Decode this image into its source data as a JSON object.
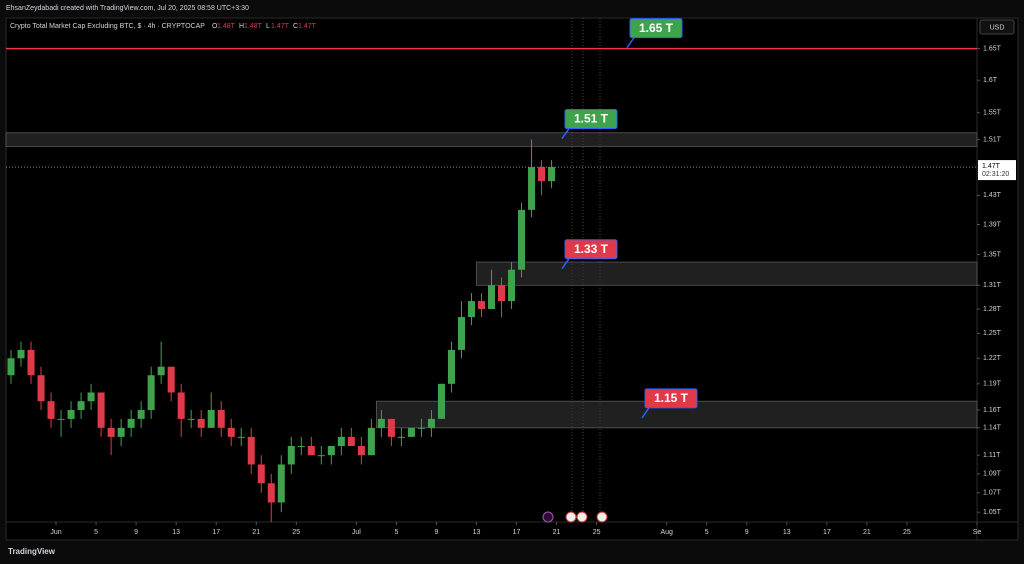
{
  "header_note": "EhsanZeydabadi created with TradingView.com, Jul 20, 2025 08:58 UTC+3:30",
  "currency": "USD",
  "brand": "TradingView",
  "chart_data": {
    "type": "candlestick",
    "title": "Crypto Total Market Cap Excluding BTC, $ · 4h · CRYPTOCAP",
    "ohlc_keys": [
      "O",
      "H",
      "L",
      "C"
    ],
    "ohlc_labels": [
      "1.48T",
      "1.48T",
      "1.47T",
      "1.47T"
    ],
    "log_scale": true,
    "grid": false,
    "up_color": "#3fa34d",
    "down_color": "#e0394a",
    "x": [
      "2025-05-27",
      "2025-05-28",
      "2025-05-29",
      "2025-05-30",
      "2025-05-31",
      "2025-06-01",
      "2025-06-02",
      "2025-06-03",
      "2025-06-04",
      "2025-06-05",
      "2025-06-06",
      "2025-06-07",
      "2025-06-08",
      "2025-06-09",
      "2025-06-10",
      "2025-06-11",
      "2025-06-12",
      "2025-06-13",
      "2025-06-14",
      "2025-06-15",
      "2025-06-16",
      "2025-06-17",
      "2025-06-18",
      "2025-06-19",
      "2025-06-20",
      "2025-06-21",
      "2025-06-22",
      "2025-06-23",
      "2025-06-24",
      "2025-06-25",
      "2025-06-26",
      "2025-06-27",
      "2025-06-28",
      "2025-06-29",
      "2025-06-30",
      "2025-07-01",
      "2025-07-02",
      "2025-07-03",
      "2025-07-04",
      "2025-07-05",
      "2025-07-06",
      "2025-07-07",
      "2025-07-08",
      "2025-07-09",
      "2025-07-10",
      "2025-07-11",
      "2025-07-12",
      "2025-07-13",
      "2025-07-14",
      "2025-07-15",
      "2025-07-16",
      "2025-07-17",
      "2025-07-18",
      "2025-07-19",
      "2025-07-20"
    ],
    "open": [
      1.2,
      1.22,
      1.23,
      1.2,
      1.17,
      1.15,
      1.15,
      1.16,
      1.17,
      1.18,
      1.14,
      1.13,
      1.14,
      1.15,
      1.16,
      1.2,
      1.21,
      1.18,
      1.15,
      1.15,
      1.14,
      1.16,
      1.14,
      1.13,
      1.13,
      1.1,
      1.08,
      1.06,
      1.1,
      1.12,
      1.12,
      1.11,
      1.11,
      1.12,
      1.13,
      1.12,
      1.11,
      1.14,
      1.15,
      1.13,
      1.13,
      1.14,
      1.14,
      1.15,
      1.19,
      1.23,
      1.27,
      1.29,
      1.28,
      1.31,
      1.29,
      1.33,
      1.41,
      1.47,
      1.45
    ],
    "high": [
      1.23,
      1.24,
      1.24,
      1.21,
      1.18,
      1.16,
      1.17,
      1.18,
      1.19,
      1.18,
      1.15,
      1.15,
      1.16,
      1.17,
      1.21,
      1.24,
      1.21,
      1.19,
      1.16,
      1.16,
      1.18,
      1.17,
      1.15,
      1.14,
      1.14,
      1.11,
      1.09,
      1.11,
      1.13,
      1.13,
      1.13,
      1.12,
      1.12,
      1.14,
      1.14,
      1.13,
      1.15,
      1.16,
      1.15,
      1.14,
      1.14,
      1.15,
      1.16,
      1.19,
      1.24,
      1.29,
      1.3,
      1.3,
      1.33,
      1.32,
      1.34,
      1.42,
      1.51,
      1.48,
      1.48
    ],
    "low": [
      1.19,
      1.21,
      1.19,
      1.16,
      1.14,
      1.13,
      1.14,
      1.15,
      1.16,
      1.13,
      1.11,
      1.12,
      1.13,
      1.14,
      1.15,
      1.19,
      1.17,
      1.13,
      1.14,
      1.13,
      1.14,
      1.13,
      1.12,
      1.12,
      1.09,
      1.07,
      1.04,
      1.05,
      1.09,
      1.11,
      1.11,
      1.1,
      1.1,
      1.11,
      1.12,
      1.1,
      1.11,
      1.13,
      1.12,
      1.12,
      1.13,
      1.13,
      1.13,
      1.15,
      1.18,
      1.22,
      1.26,
      1.27,
      1.28,
      1.27,
      1.28,
      1.32,
      1.4,
      1.43,
      1.44
    ],
    "close": [
      1.22,
      1.23,
      1.2,
      1.17,
      1.15,
      1.15,
      1.16,
      1.17,
      1.18,
      1.14,
      1.13,
      1.14,
      1.15,
      1.16,
      1.2,
      1.21,
      1.18,
      1.15,
      1.15,
      1.14,
      1.16,
      1.14,
      1.13,
      1.13,
      1.1,
      1.08,
      1.06,
      1.1,
      1.12,
      1.12,
      1.11,
      1.11,
      1.12,
      1.13,
      1.12,
      1.11,
      1.14,
      1.15,
      1.13,
      1.13,
      1.14,
      1.14,
      1.15,
      1.19,
      1.23,
      1.27,
      1.29,
      1.28,
      1.31,
      1.29,
      1.33,
      1.41,
      1.47,
      1.45,
      1.47
    ],
    "xlim": [
      "2025-05-27",
      "2025-09-01"
    ],
    "xticks": [
      {
        "value": "2025-06-01",
        "label": "Jun"
      },
      {
        "value": "2025-06-05",
        "label": "5"
      },
      {
        "value": "2025-06-09",
        "label": "9"
      },
      {
        "value": "2025-06-13",
        "label": "13"
      },
      {
        "value": "2025-06-17",
        "label": "17"
      },
      {
        "value": "2025-06-21",
        "label": "21"
      },
      {
        "value": "2025-06-25",
        "label": "25"
      },
      {
        "value": "2025-07-01",
        "label": "Jul"
      },
      {
        "value": "2025-07-05",
        "label": "5"
      },
      {
        "value": "2025-07-09",
        "label": "9"
      },
      {
        "value": "2025-07-13",
        "label": "13"
      },
      {
        "value": "2025-07-17",
        "label": "17"
      },
      {
        "value": "2025-07-21",
        "label": "21"
      },
      {
        "value": "2025-07-25",
        "label": "25"
      },
      {
        "value": "2025-08-01",
        "label": "Aug"
      },
      {
        "value": "2025-08-05",
        "label": "5"
      },
      {
        "value": "2025-08-09",
        "label": "9"
      },
      {
        "value": "2025-08-13",
        "label": "13"
      },
      {
        "value": "2025-08-17",
        "label": "17"
      },
      {
        "value": "2025-08-21",
        "label": "21"
      },
      {
        "value": "2025-08-25",
        "label": "25"
      },
      {
        "value": "2025-09-01",
        "label": "Se"
      }
    ],
    "ylim": [
      1.04,
      1.7
    ],
    "yticks": [
      {
        "value": 1.65,
        "label": "1.65T"
      },
      {
        "value": 1.6,
        "label": "1.6T"
      },
      {
        "value": 1.55,
        "label": "1.55T"
      },
      {
        "value": 1.51,
        "label": "1.51T"
      },
      {
        "value": 1.43,
        "label": "1.43T"
      },
      {
        "value": 1.39,
        "label": "1.39T"
      },
      {
        "value": 1.35,
        "label": "1.35T"
      },
      {
        "value": 1.31,
        "label": "1.31T"
      },
      {
        "value": 1.28,
        "label": "1.28T"
      },
      {
        "value": 1.25,
        "label": "1.25T"
      },
      {
        "value": 1.22,
        "label": "1.22T"
      },
      {
        "value": 1.19,
        "label": "1.19T"
      },
      {
        "value": 1.16,
        "label": "1.16T"
      },
      {
        "value": 1.14,
        "label": "1.14T"
      },
      {
        "value": 1.11,
        "label": "1.11T"
      },
      {
        "value": 1.09,
        "label": "1.09T"
      },
      {
        "value": 1.07,
        "label": "1.07T"
      },
      {
        "value": 1.05,
        "label": "1.05T"
      }
    ],
    "last_price": {
      "value": 1.47,
      "label": "1.47T",
      "countdown": "02:31:20"
    },
    "level_line": {
      "value": 1.65,
      "color": "#f23645"
    },
    "zones": [
      {
        "low": 1.5,
        "high": 1.52,
        "start": "2025-05-27"
      },
      {
        "low": 1.31,
        "high": 1.34,
        "start": "2025-07-13"
      },
      {
        "low": 1.14,
        "high": 1.17,
        "start": "2025-07-03"
      }
    ],
    "annotations": [
      {
        "text": "1.65 T",
        "value": 1.65,
        "color": "#3fa34d"
      },
      {
        "text": "1.51 T",
        "value": 1.51,
        "color": "#3fa34d"
      },
      {
        "text": "1.33 T",
        "value": 1.33,
        "color": "#e0394a"
      },
      {
        "text": "1.15 T",
        "value": 1.15,
        "color": "#e0394a"
      }
    ]
  }
}
